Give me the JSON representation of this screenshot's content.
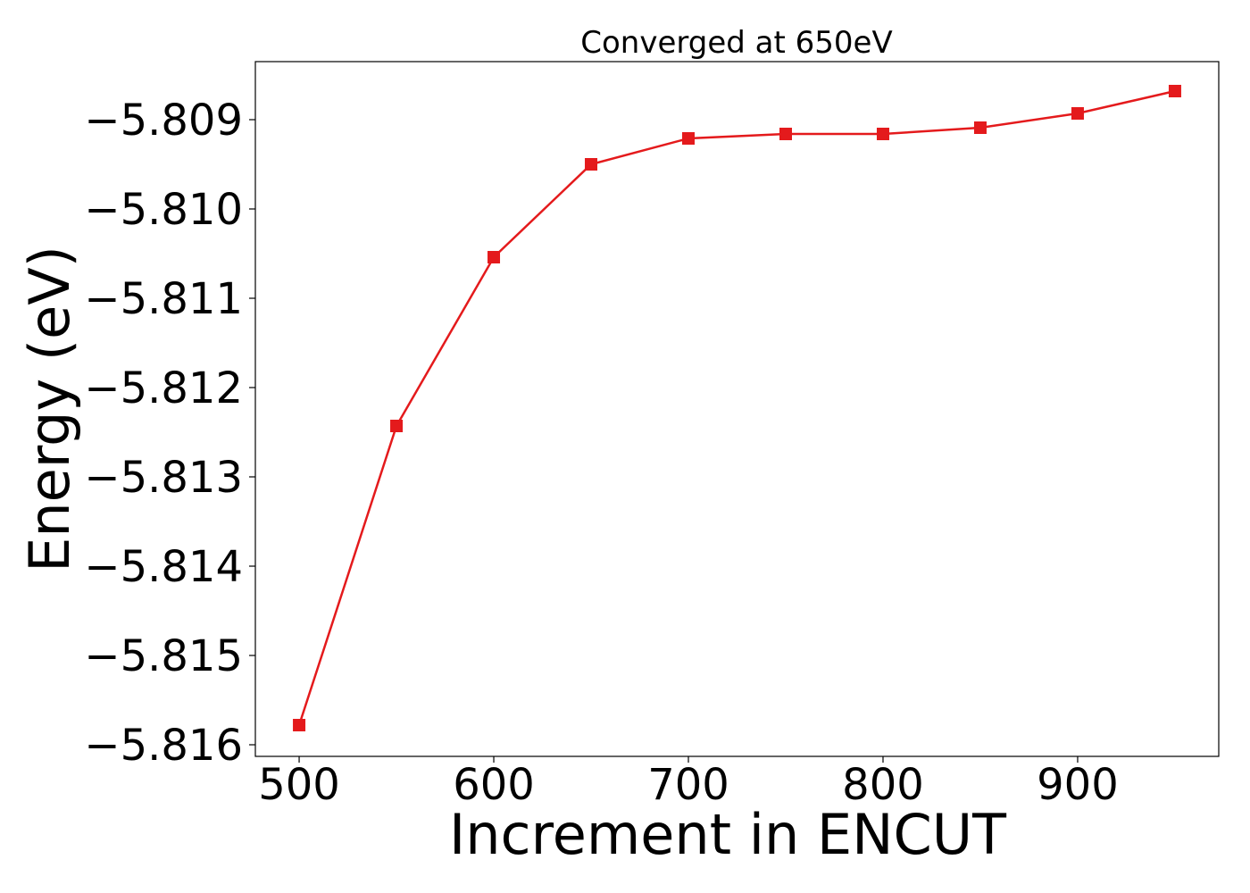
{
  "chart_data": {
    "type": "line",
    "title": "Converged at 650eV",
    "xlabel": "Increment in ENCUT",
    "ylabel": "Energy (eV)",
    "x": [
      500,
      550,
      600,
      650,
      700,
      750,
      800,
      850,
      900,
      950
    ],
    "series": [
      {
        "values": [
          -5.81578,
          -5.81243,
          -5.81054,
          -5.8095,
          -5.80921,
          -5.80916,
          -5.80916,
          -5.80909,
          -5.80893,
          -5.80868
        ],
        "color": "#e41a1c",
        "marker": "square"
      }
    ],
    "xlim": [
      477.5,
      972.5
    ],
    "ylim": [
      -5.81613,
      -5.80835
    ],
    "xticks": [
      500,
      600,
      700,
      800,
      900
    ],
    "xtick_labels": [
      "500",
      "600",
      "700",
      "800",
      "900"
    ],
    "yticks": [
      -5.816,
      -5.815,
      -5.814,
      -5.813,
      -5.812,
      -5.811,
      -5.81,
      -5.809
    ],
    "ytick_labels": [
      "−5.816",
      "−5.815",
      "−5.814",
      "−5.813",
      "−5.812",
      "−5.811",
      "−5.810",
      "−5.809"
    ],
    "grid": false,
    "legend": false
  }
}
